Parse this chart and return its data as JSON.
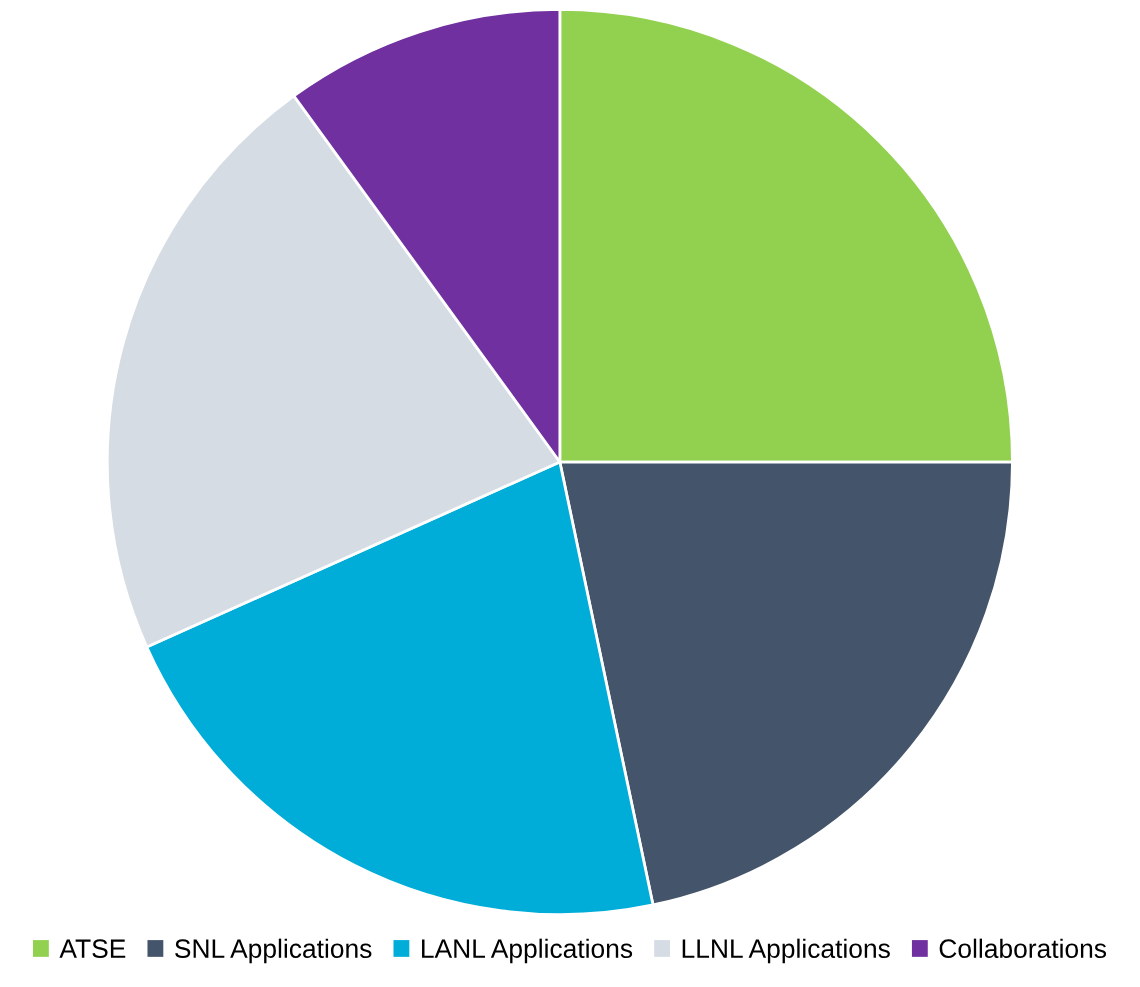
{
  "chart_data": {
    "type": "pie",
    "categories": [
      "ATSE",
      "SNL Applications",
      "LANL Applications",
      "LLNL Applications",
      "Collaborations"
    ],
    "values": [
      25,
      21.7,
      21.6,
      21.7,
      10
    ],
    "colors": [
      "#92d050",
      "#44546a",
      "#00acd8",
      "#d6dce4",
      "#7030a0"
    ],
    "legend": "bottom"
  }
}
